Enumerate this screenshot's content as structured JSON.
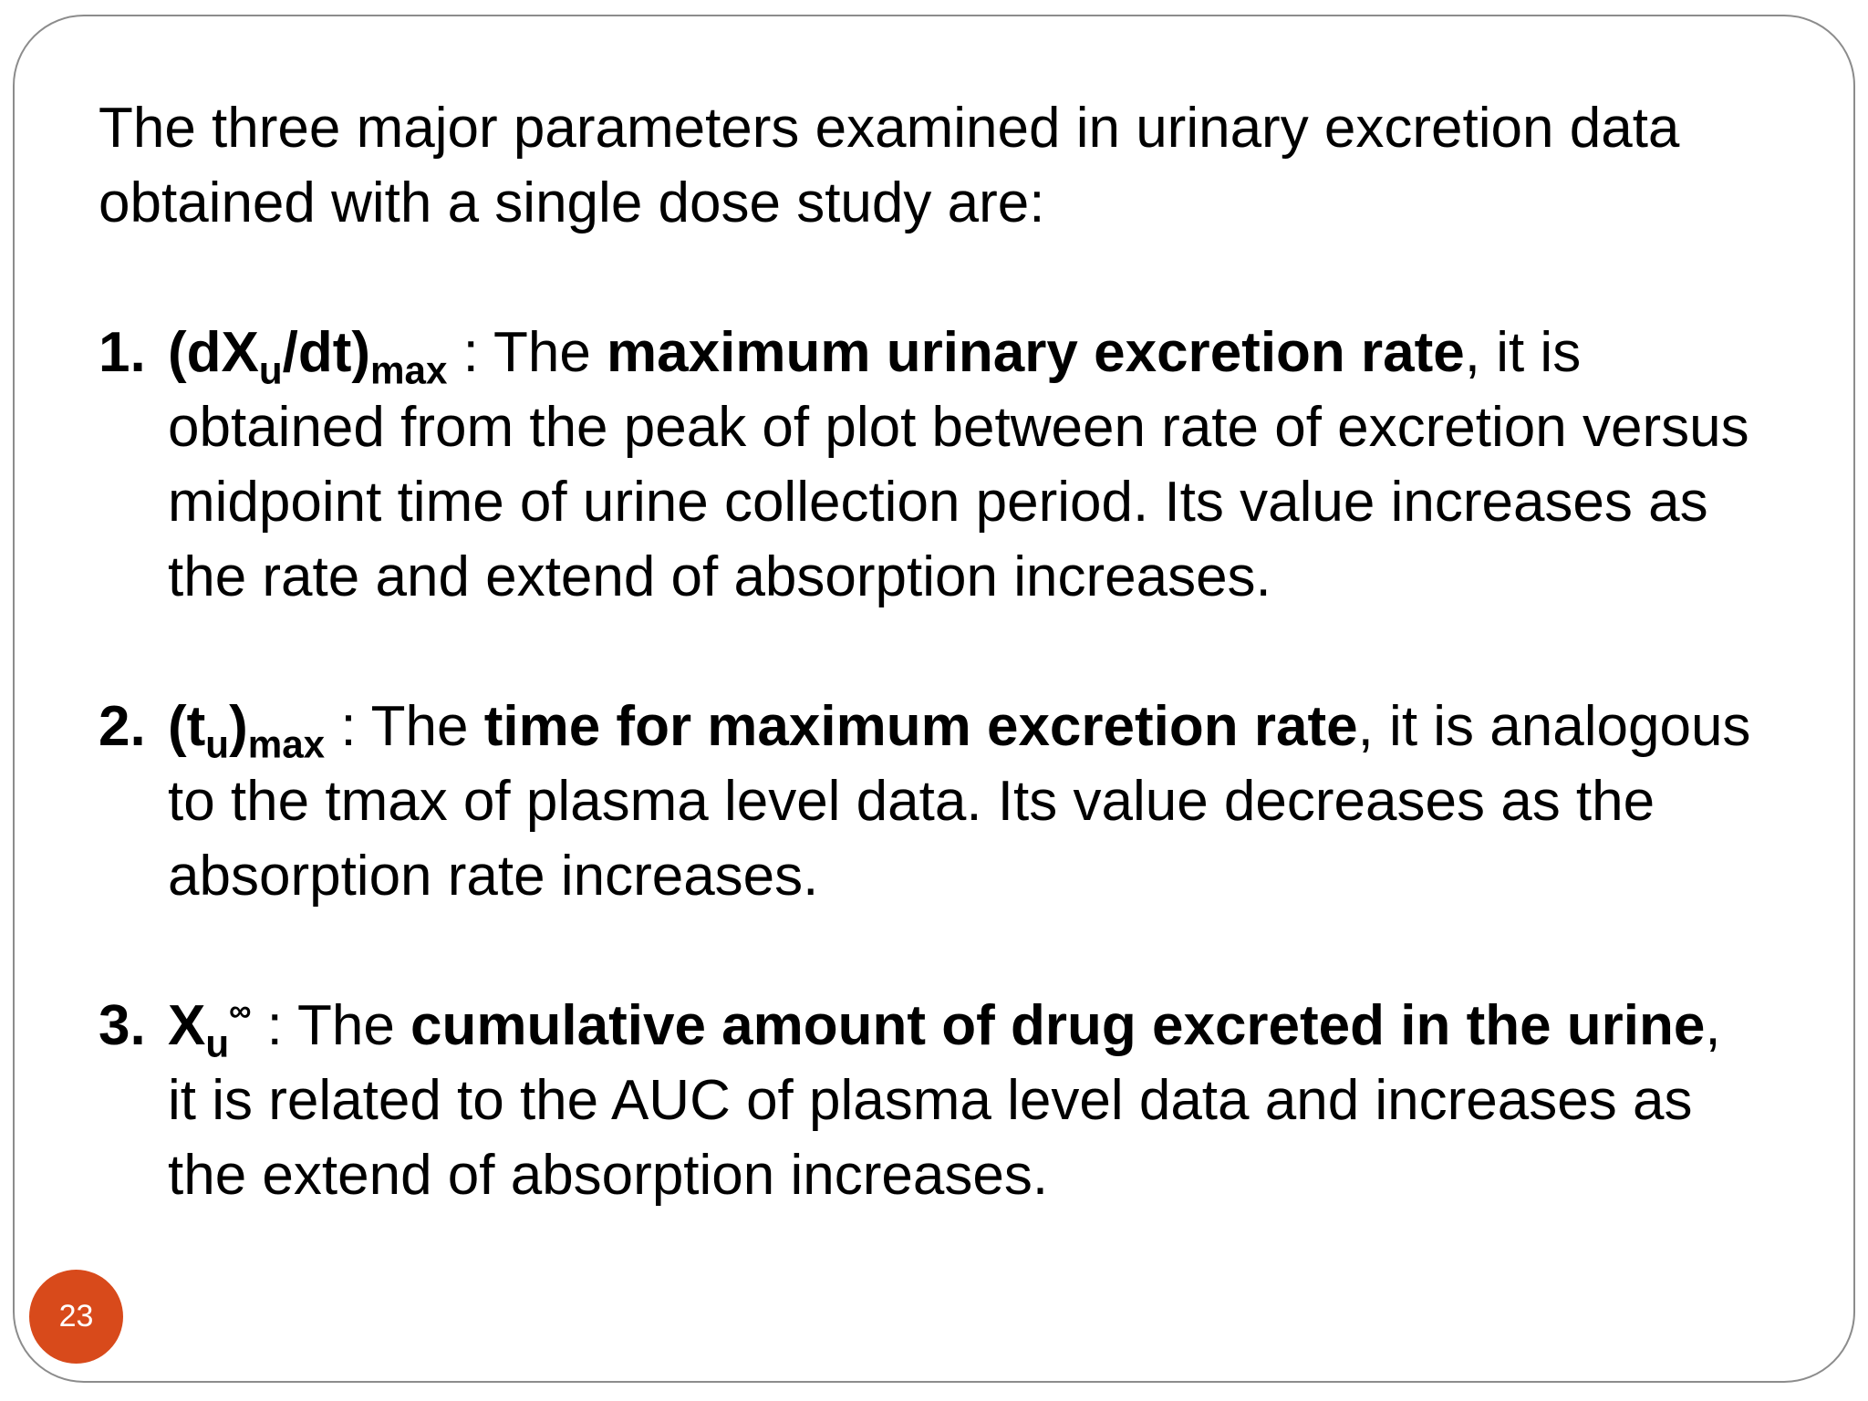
{
  "slide": {
    "intro": "The three major parameters examined in urinary excretion data obtained with a single dose study are:",
    "items": [
      {
        "number": "1.",
        "symbol": {
          "open": "(dX",
          "sub1": "u",
          "mid": "/dt)",
          "sub2": "max"
        },
        "pre": " : The ",
        "bold": "maximum urinary excretion rate",
        "post": ", it is obtained from the peak of plot between rate of excretion versus midpoint time of urine collection period. Its value increases as the rate and extend of absorption increases."
      },
      {
        "number": "2.",
        "symbol": {
          "open": "(t",
          "sub1": "u",
          "mid": ")",
          "sub2": "max"
        },
        "pre": " : The ",
        "bold": "time for maximum excretion rate",
        "post": ", it is analogous to the tmax of plasma level data. Its value decreases as the absorption rate increases."
      },
      {
        "number": "3.",
        "symbol": {
          "open": "X",
          "sub1": "u",
          "sup": "∞"
        },
        "pre": " : The ",
        "bold": "cumulative amount of drug excreted in the urine",
        "post": ", it is related to the AUC of plasma level data and increases as the extend of absorption increases."
      }
    ],
    "page_number": "23",
    "accent_color": "#d84a1b",
    "border_color": "#8c8c8c"
  }
}
